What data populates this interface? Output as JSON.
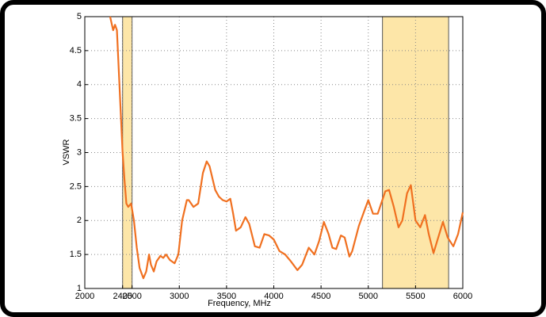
{
  "chart_data": {
    "type": "line",
    "xlabel": "Frequency, MHz",
    "ylabel": "VSWR",
    "x": [
      2268,
      2300,
      2320,
      2340,
      2360,
      2380,
      2400,
      2420,
      2440,
      2460,
      2490,
      2520,
      2550,
      2580,
      2620,
      2650,
      2680,
      2700,
      2730,
      2760,
      2800,
      2830,
      2860,
      2900,
      2950,
      2990,
      3030,
      3080,
      3100,
      3150,
      3200,
      3250,
      3290,
      3320,
      3380,
      3420,
      3460,
      3500,
      3540,
      3570,
      3600,
      3650,
      3700,
      3740,
      3800,
      3850,
      3900,
      3950,
      4000,
      4060,
      4120,
      4180,
      4250,
      4300,
      4370,
      4430,
      4480,
      4530,
      4580,
      4620,
      4660,
      4710,
      4750,
      4800,
      4830,
      4900,
      4960,
      5000,
      5050,
      5100,
      5180,
      5220,
      5270,
      5320,
      5360,
      5410,
      5450,
      5500,
      5550,
      5600,
      5640,
      5690,
      5740,
      5790,
      5840,
      5900,
      5950,
      6000
    ],
    "series": [
      {
        "name": "VSWR",
        "color": "#f07020",
        "values": [
          5.0,
          4.8,
          4.88,
          4.8,
          4.2,
          3.6,
          3.0,
          2.6,
          2.25,
          2.2,
          2.25,
          2.0,
          1.6,
          1.3,
          1.15,
          1.25,
          1.5,
          1.35,
          1.25,
          1.4,
          1.48,
          1.45,
          1.5,
          1.42,
          1.37,
          1.5,
          2.0,
          2.3,
          2.3,
          2.2,
          2.25,
          2.7,
          2.87,
          2.8,
          2.45,
          2.35,
          2.3,
          2.28,
          2.32,
          2.1,
          1.85,
          1.9,
          2.05,
          1.95,
          1.62,
          1.6,
          1.8,
          1.78,
          1.72,
          1.55,
          1.5,
          1.4,
          1.27,
          1.35,
          1.6,
          1.5,
          1.7,
          1.98,
          1.8,
          1.6,
          1.58,
          1.78,
          1.75,
          1.47,
          1.55,
          1.92,
          2.15,
          2.3,
          2.1,
          2.1,
          2.43,
          2.45,
          2.2,
          1.9,
          2.0,
          2.4,
          2.52,
          2.0,
          1.9,
          2.08,
          1.8,
          1.52,
          1.75,
          1.98,
          1.75,
          1.62,
          1.8,
          2.12
        ]
      }
    ],
    "bands": [
      [
        2400,
        2500
      ],
      [
        5150,
        5850
      ]
    ],
    "band_color": "#fde6a8",
    "xlim": [
      2000,
      6000
    ],
    "ylim": [
      1,
      5
    ],
    "xticks": [
      2000,
      2400,
      2500,
      3000,
      3500,
      4000,
      4500,
      5000,
      5500,
      6000
    ],
    "yticks": [
      1,
      1.5,
      2,
      2.5,
      3,
      3.5,
      4,
      4.5,
      5
    ],
    "grid": true
  }
}
